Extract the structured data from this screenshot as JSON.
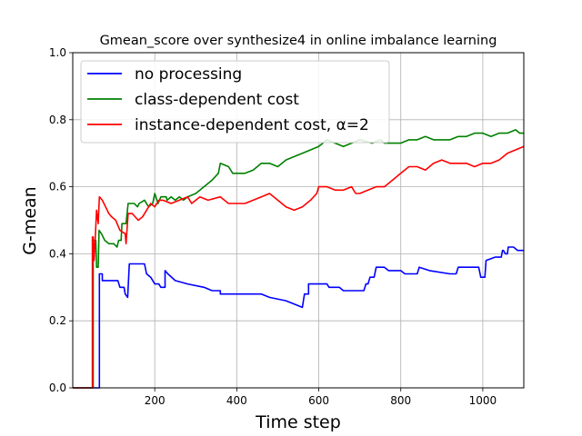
{
  "chart_data": {
    "type": "line",
    "title": "Gmean_score over synthesize4 in online imbalance learning",
    "xlabel": "Time step",
    "ylabel": "G-mean",
    "xlim": [
      0,
      1100
    ],
    "ylim": [
      0.0,
      1.0
    ],
    "xticks": [
      200,
      400,
      600,
      800,
      1000
    ],
    "yticks": [
      0.0,
      0.2,
      0.4,
      0.6,
      0.8,
      1.0
    ],
    "xtick_labels": [
      "200",
      "400",
      "600",
      "800",
      "1000"
    ],
    "ytick_labels": [
      "0.0",
      "0.2",
      "0.4",
      "0.6",
      "0.8",
      "1.0"
    ],
    "grid": true,
    "legend_position": "top-left",
    "series": [
      {
        "name": "no processing",
        "color": "#0000ff",
        "points": [
          [
            0,
            0
          ],
          [
            65,
            0
          ],
          [
            65,
            0.34
          ],
          [
            72,
            0.34
          ],
          [
            72,
            0.32
          ],
          [
            110,
            0.32
          ],
          [
            115,
            0.3
          ],
          [
            125,
            0.3
          ],
          [
            128,
            0.28
          ],
          [
            134,
            0.27
          ],
          [
            138,
            0.37
          ],
          [
            175,
            0.37
          ],
          [
            180,
            0.34
          ],
          [
            190,
            0.33
          ],
          [
            200,
            0.31
          ],
          [
            210,
            0.31
          ],
          [
            215,
            0.3
          ],
          [
            225,
            0.3
          ],
          [
            225,
            0.35
          ],
          [
            232,
            0.34
          ],
          [
            250,
            0.32
          ],
          [
            280,
            0.31
          ],
          [
            320,
            0.3
          ],
          [
            340,
            0.29
          ],
          [
            360,
            0.29
          ],
          [
            360,
            0.28
          ],
          [
            400,
            0.28
          ],
          [
            460,
            0.28
          ],
          [
            480,
            0.27
          ],
          [
            520,
            0.26
          ],
          [
            540,
            0.25
          ],
          [
            560,
            0.24
          ],
          [
            565,
            0.28
          ],
          [
            575,
            0.28
          ],
          [
            575,
            0.31
          ],
          [
            610,
            0.31
          ],
          [
            620,
            0.31
          ],
          [
            625,
            0.3
          ],
          [
            650,
            0.3
          ],
          [
            660,
            0.29
          ],
          [
            700,
            0.29
          ],
          [
            710,
            0.29
          ],
          [
            715,
            0.31
          ],
          [
            720,
            0.31
          ],
          [
            725,
            0.33
          ],
          [
            735,
            0.33
          ],
          [
            740,
            0.36
          ],
          [
            760,
            0.36
          ],
          [
            770,
            0.35
          ],
          [
            800,
            0.35
          ],
          [
            810,
            0.34
          ],
          [
            840,
            0.34
          ],
          [
            845,
            0.36
          ],
          [
            870,
            0.35
          ],
          [
            920,
            0.34
          ],
          [
            935,
            0.34
          ],
          [
            940,
            0.36
          ],
          [
            990,
            0.36
          ],
          [
            995,
            0.33
          ],
          [
            1005,
            0.33
          ],
          [
            1008,
            0.38
          ],
          [
            1030,
            0.39
          ],
          [
            1045,
            0.39
          ],
          [
            1048,
            0.41
          ],
          [
            1050,
            0.41
          ],
          [
            1055,
            0.4
          ],
          [
            1060,
            0.4
          ],
          [
            1062,
            0.42
          ],
          [
            1075,
            0.42
          ],
          [
            1085,
            0.41
          ],
          [
            1100,
            0.41
          ]
        ]
      },
      {
        "name": "class-dependent cost",
        "color": "#008000",
        "points": [
          [
            0,
            0
          ],
          [
            50,
            0
          ],
          [
            50,
            0.44
          ],
          [
            56,
            0.44
          ],
          [
            58,
            0.36
          ],
          [
            62,
            0.36
          ],
          [
            64,
            0.47
          ],
          [
            70,
            0.46
          ],
          [
            78,
            0.44
          ],
          [
            88,
            0.43
          ],
          [
            100,
            0.43
          ],
          [
            108,
            0.42
          ],
          [
            112,
            0.44
          ],
          [
            118,
            0.44
          ],
          [
            120,
            0.49
          ],
          [
            130,
            0.49
          ],
          [
            135,
            0.55
          ],
          [
            150,
            0.55
          ],
          [
            158,
            0.54
          ],
          [
            162,
            0.55
          ],
          [
            175,
            0.56
          ],
          [
            185,
            0.54
          ],
          [
            195,
            0.55
          ],
          [
            200,
            0.58
          ],
          [
            208,
            0.55
          ],
          [
            215,
            0.57
          ],
          [
            228,
            0.57
          ],
          [
            230,
            0.56
          ],
          [
            240,
            0.57
          ],
          [
            250,
            0.56
          ],
          [
            260,
            0.57
          ],
          [
            270,
            0.56
          ],
          [
            280,
            0.57
          ],
          [
            300,
            0.58
          ],
          [
            320,
            0.6
          ],
          [
            340,
            0.62
          ],
          [
            355,
            0.64
          ],
          [
            360,
            0.67
          ],
          [
            380,
            0.66
          ],
          [
            390,
            0.64
          ],
          [
            420,
            0.64
          ],
          [
            440,
            0.65
          ],
          [
            460,
            0.67
          ],
          [
            480,
            0.67
          ],
          [
            500,
            0.66
          ],
          [
            520,
            0.68
          ],
          [
            540,
            0.69
          ],
          [
            560,
            0.7
          ],
          [
            580,
            0.71
          ],
          [
            600,
            0.72
          ],
          [
            620,
            0.74
          ],
          [
            640,
            0.73
          ],
          [
            660,
            0.72
          ],
          [
            680,
            0.73
          ],
          [
            700,
            0.74
          ],
          [
            730,
            0.73
          ],
          [
            750,
            0.74
          ],
          [
            760,
            0.73
          ],
          [
            780,
            0.73
          ],
          [
            800,
            0.73
          ],
          [
            820,
            0.74
          ],
          [
            840,
            0.74
          ],
          [
            860,
            0.75
          ],
          [
            880,
            0.74
          ],
          [
            900,
            0.74
          ],
          [
            920,
            0.74
          ],
          [
            940,
            0.75
          ],
          [
            960,
            0.75
          ],
          [
            980,
            0.76
          ],
          [
            1000,
            0.76
          ],
          [
            1020,
            0.75
          ],
          [
            1040,
            0.76
          ],
          [
            1060,
            0.76
          ],
          [
            1080,
            0.77
          ],
          [
            1090,
            0.76
          ],
          [
            1100,
            0.76
          ]
        ]
      },
      {
        "name": "instance-dependent cost, α=2",
        "color": "#ff0000",
        "points": [
          [
            0,
            0
          ],
          [
            48,
            0
          ],
          [
            48,
            0.45
          ],
          [
            50,
            0.45
          ],
          [
            52,
            0.38
          ],
          [
            55,
            0.45
          ],
          [
            58,
            0.53
          ],
          [
            62,
            0.49
          ],
          [
            65,
            0.57
          ],
          [
            72,
            0.56
          ],
          [
            80,
            0.54
          ],
          [
            88,
            0.52
          ],
          [
            95,
            0.51
          ],
          [
            105,
            0.5
          ],
          [
            115,
            0.47
          ],
          [
            128,
            0.46
          ],
          [
            130,
            0.43
          ],
          [
            135,
            0.52
          ],
          [
            145,
            0.52
          ],
          [
            160,
            0.5
          ],
          [
            170,
            0.51
          ],
          [
            180,
            0.53
          ],
          [
            190,
            0.55
          ],
          [
            200,
            0.54
          ],
          [
            210,
            0.56
          ],
          [
            220,
            0.56
          ],
          [
            240,
            0.55
          ],
          [
            260,
            0.56
          ],
          [
            280,
            0.57
          ],
          [
            290,
            0.55
          ],
          [
            300,
            0.56
          ],
          [
            310,
            0.57
          ],
          [
            330,
            0.56
          ],
          [
            360,
            0.57
          ],
          [
            380,
            0.55
          ],
          [
            400,
            0.55
          ],
          [
            420,
            0.55
          ],
          [
            440,
            0.56
          ],
          [
            460,
            0.57
          ],
          [
            480,
            0.58
          ],
          [
            500,
            0.56
          ],
          [
            520,
            0.54
          ],
          [
            540,
            0.53
          ],
          [
            560,
            0.54
          ],
          [
            580,
            0.56
          ],
          [
            595,
            0.58
          ],
          [
            600,
            0.6
          ],
          [
            620,
            0.6
          ],
          [
            640,
            0.59
          ],
          [
            660,
            0.59
          ],
          [
            680,
            0.6
          ],
          [
            690,
            0.58
          ],
          [
            700,
            0.58
          ],
          [
            720,
            0.59
          ],
          [
            740,
            0.6
          ],
          [
            760,
            0.6
          ],
          [
            780,
            0.62
          ],
          [
            800,
            0.64
          ],
          [
            820,
            0.66
          ],
          [
            840,
            0.66
          ],
          [
            860,
            0.65
          ],
          [
            880,
            0.67
          ],
          [
            900,
            0.68
          ],
          [
            920,
            0.67
          ],
          [
            940,
            0.67
          ],
          [
            960,
            0.67
          ],
          [
            980,
            0.66
          ],
          [
            1000,
            0.67
          ],
          [
            1020,
            0.67
          ],
          [
            1040,
            0.68
          ],
          [
            1060,
            0.7
          ],
          [
            1080,
            0.71
          ],
          [
            1100,
            0.72
          ]
        ]
      }
    ]
  }
}
